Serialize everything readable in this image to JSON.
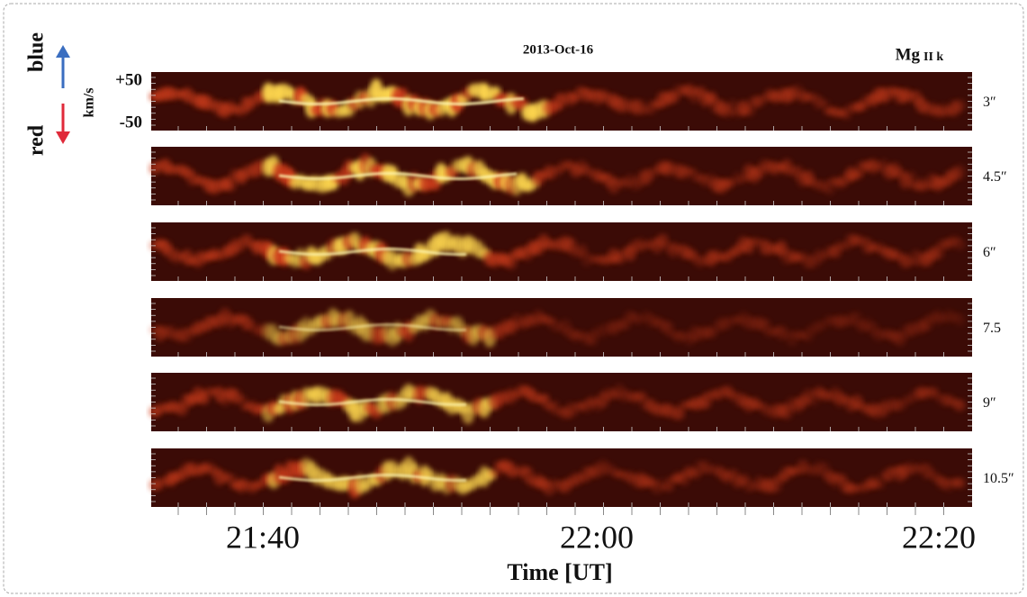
{
  "title": "2013-Oct-16",
  "line": {
    "element": "Mg",
    "ion": "II k"
  },
  "axis": {
    "blue": "blue",
    "red": "red",
    "unit": "km/s",
    "top": "+50",
    "bottom": "-50"
  },
  "panels": [
    "3″",
    "4.5″",
    "6″",
    "7.5",
    "9″",
    "10.5″"
  ],
  "time_ticks": [
    "21:40",
    "22:00",
    "22:20"
  ],
  "x_label": "Time [UT]"
}
